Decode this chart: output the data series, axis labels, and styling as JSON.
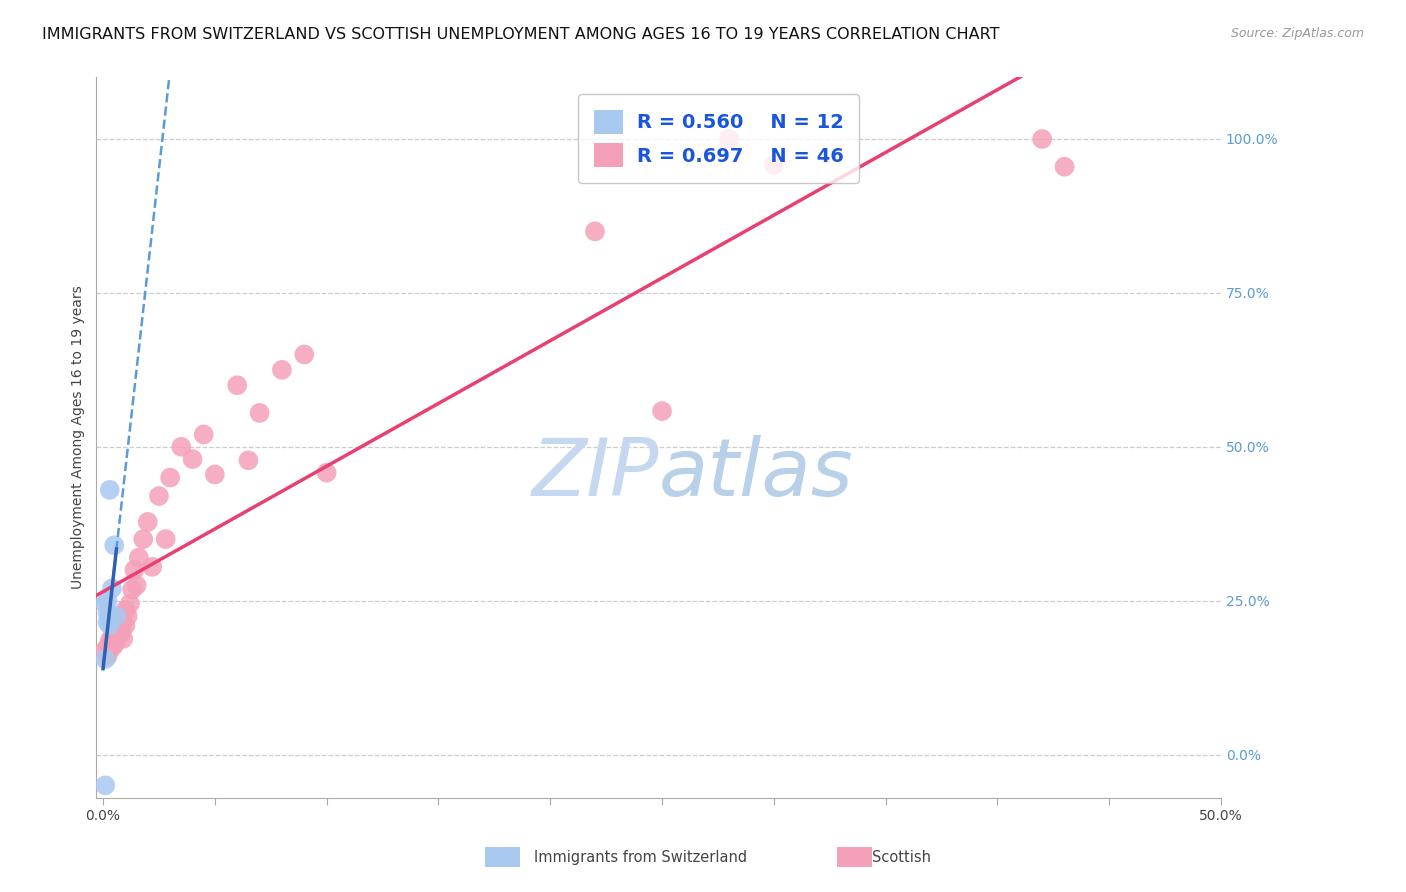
{
  "title": "IMMIGRANTS FROM SWITZERLAND VS SCOTTISH UNEMPLOYMENT AMONG AGES 16 TO 19 YEARS CORRELATION CHART",
  "source": "Source: ZipAtlas.com",
  "ylabel": "Unemployment Among Ages 16 to 19 years",
  "xlim": [
    -0.003,
    0.5
  ],
  "ylim": [
    -0.07,
    1.1
  ],
  "xticks": [
    0.0,
    0.05,
    0.1,
    0.15,
    0.2,
    0.25,
    0.3,
    0.35,
    0.4,
    0.45,
    0.5
  ],
  "yticks": [
    0.0,
    0.25,
    0.5,
    0.75,
    1.0
  ],
  "ytick_labels": [
    "0.0%",
    "25.0%",
    "50.0%",
    "75.0%",
    "100.0%"
  ],
  "r_swiss": 0.56,
  "n_swiss": 12,
  "r_scottish": 0.697,
  "n_scottish": 46,
  "swiss_color": "#a8c8f0",
  "scottish_color": "#f4a0b8",
  "swiss_line_color": "#5b9bd5",
  "swiss_solid_color": "#3060b0",
  "scottish_line_color": "#e84070",
  "watermark_zip_color": "#c5d8f0",
  "watermark_atlas_color": "#b8d0e8",
  "grid_color": "#cccccc",
  "background_color": "#ffffff",
  "title_fontsize": 11.5,
  "ylabel_fontsize": 10,
  "tick_fontsize": 10,
  "legend_fontsize": 14,
  "swiss_x": [
    0.001,
    0.001,
    0.002,
    0.002,
    0.002,
    0.003,
    0.003,
    0.003,
    0.004,
    0.005,
    0.006,
    0.001
  ],
  "swiss_y": [
    0.155,
    0.245,
    0.215,
    0.23,
    0.25,
    0.21,
    0.225,
    0.43,
    0.27,
    0.34,
    0.225,
    -0.05
  ],
  "scottish_x": [
    0.001,
    0.002,
    0.002,
    0.003,
    0.003,
    0.004,
    0.004,
    0.005,
    0.005,
    0.006,
    0.006,
    0.007,
    0.008,
    0.008,
    0.009,
    0.009,
    0.01,
    0.01,
    0.011,
    0.012,
    0.013,
    0.014,
    0.015,
    0.016,
    0.018,
    0.02,
    0.022,
    0.025,
    0.028,
    0.03,
    0.035,
    0.04,
    0.045,
    0.05,
    0.06,
    0.065,
    0.07,
    0.08,
    0.09,
    0.1,
    0.22,
    0.25,
    0.28,
    0.3,
    0.42,
    0.43
  ],
  "scottish_y": [
    0.17,
    0.16,
    0.175,
    0.17,
    0.185,
    0.175,
    0.19,
    0.178,
    0.195,
    0.188,
    0.205,
    0.215,
    0.198,
    0.225,
    0.215,
    0.188,
    0.235,
    0.21,
    0.225,
    0.245,
    0.268,
    0.3,
    0.275,
    0.32,
    0.35,
    0.378,
    0.305,
    0.42,
    0.35,
    0.45,
    0.5,
    0.48,
    0.52,
    0.455,
    0.6,
    0.478,
    0.555,
    0.625,
    0.65,
    0.458,
    0.85,
    0.558,
    1.0,
    0.958,
    1.0,
    0.955
  ]
}
